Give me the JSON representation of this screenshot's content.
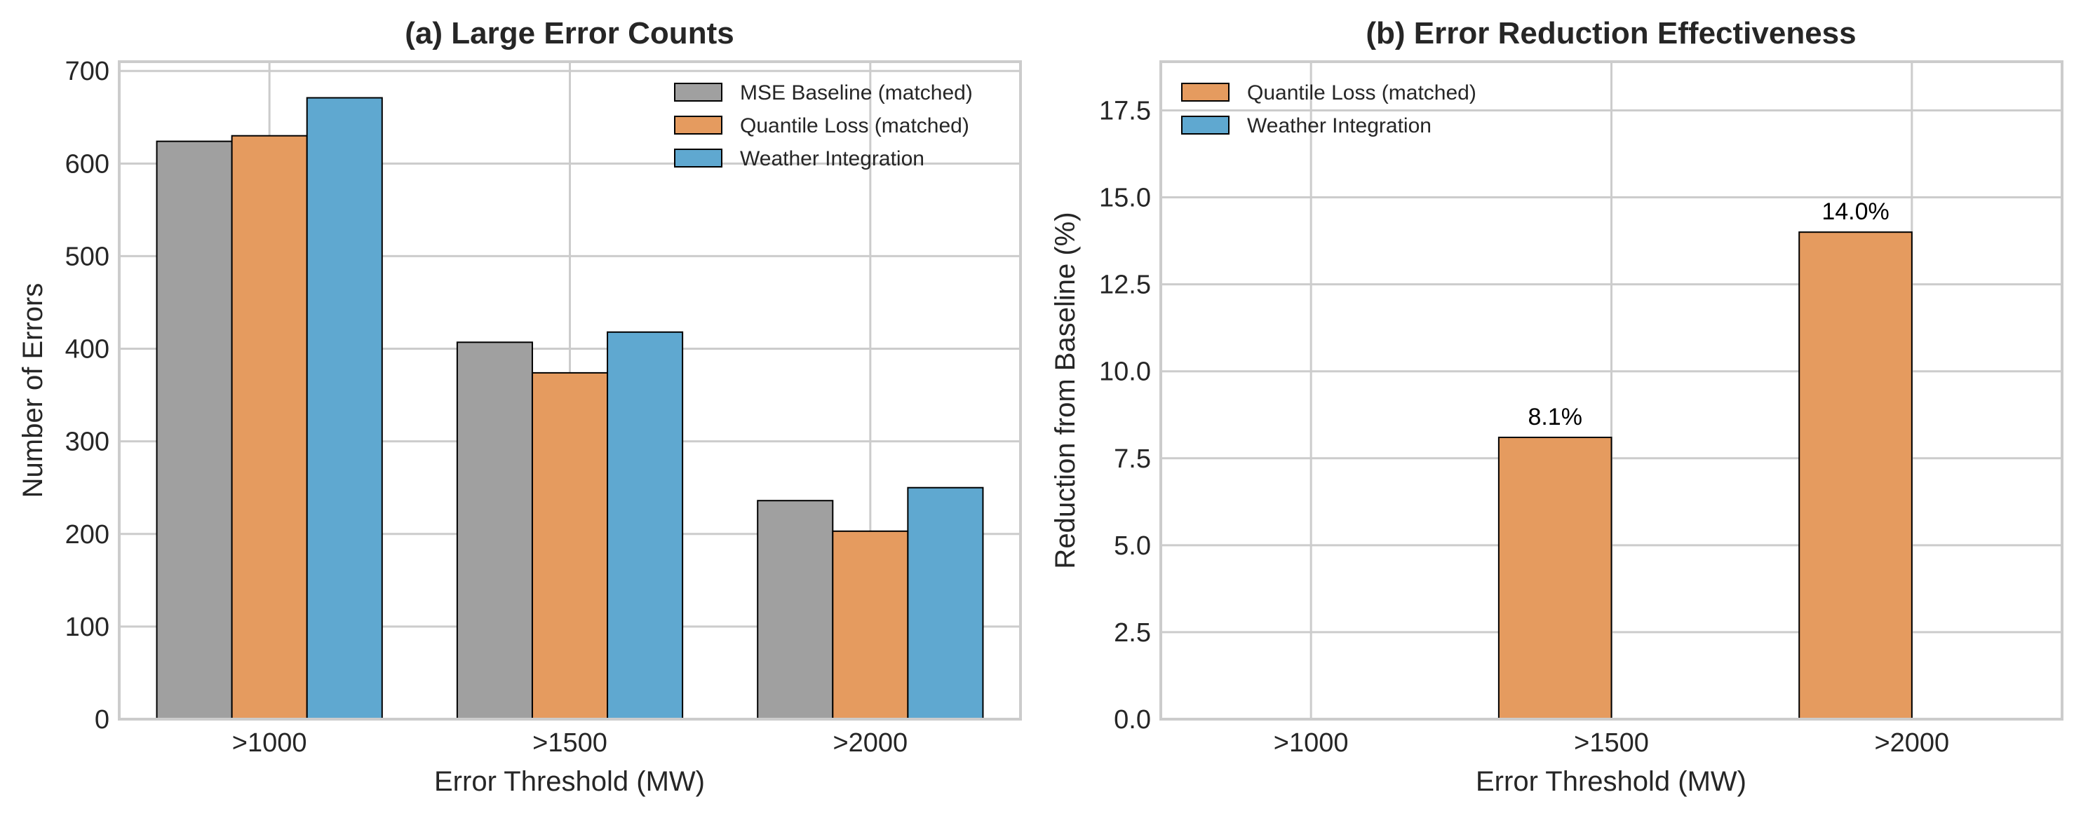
{
  "colors": {
    "baseline": "#a0a0a0",
    "quantile": "#e59b5f",
    "weather": "#5fa8d0"
  },
  "chart_data": [
    {
      "type": "bar",
      "title": "(a) Large Error Counts",
      "xlabel": "Error Threshold (MW)",
      "ylabel": "Number of Errors",
      "categories": [
        ">1000",
        ">1500",
        ">2000"
      ],
      "ylim": [
        0,
        710
      ],
      "yticks": [
        0,
        100,
        200,
        300,
        400,
        500,
        600,
        700
      ],
      "ytick_labels": [
        "0",
        "100",
        "200",
        "300",
        "400",
        "500",
        "600",
        "700"
      ],
      "grid": true,
      "legend_position": "top-right",
      "series": [
        {
          "name": "MSE Baseline (matched)",
          "color_key": "baseline",
          "values": [
            624,
            407,
            236
          ]
        },
        {
          "name": "Quantile Loss (matched)",
          "color_key": "quantile",
          "values": [
            630,
            374,
            203
          ]
        },
        {
          "name": "Weather Integration",
          "color_key": "weather",
          "values": [
            671,
            418,
            250
          ]
        }
      ]
    },
    {
      "type": "bar",
      "title": "(b) Error Reduction Effectiveness",
      "xlabel": "Error Threshold (MW)",
      "ylabel": "Reduction from Baseline (%)",
      "categories": [
        ">1000",
        ">1500",
        ">2000"
      ],
      "ylim": [
        0,
        18.9
      ],
      "yticks": [
        0,
        2.5,
        5,
        7.5,
        10,
        12.5,
        15,
        17.5
      ],
      "ytick_labels": [
        "0.0",
        "2.5",
        "5.0",
        "7.5",
        "10.0",
        "12.5",
        "15.0",
        "17.5"
      ],
      "grid": true,
      "legend_position": "top-left",
      "series": [
        {
          "name": "Quantile Loss (matched)",
          "color_key": "quantile",
          "values": [
            0,
            8.1,
            14.0
          ],
          "labels": [
            "",
            "8.1%",
            "14.0%"
          ]
        },
        {
          "name": "Weather Integration",
          "color_key": "weather",
          "values": [
            0,
            0,
            0
          ],
          "labels": [
            "",
            "",
            ""
          ]
        }
      ]
    }
  ]
}
